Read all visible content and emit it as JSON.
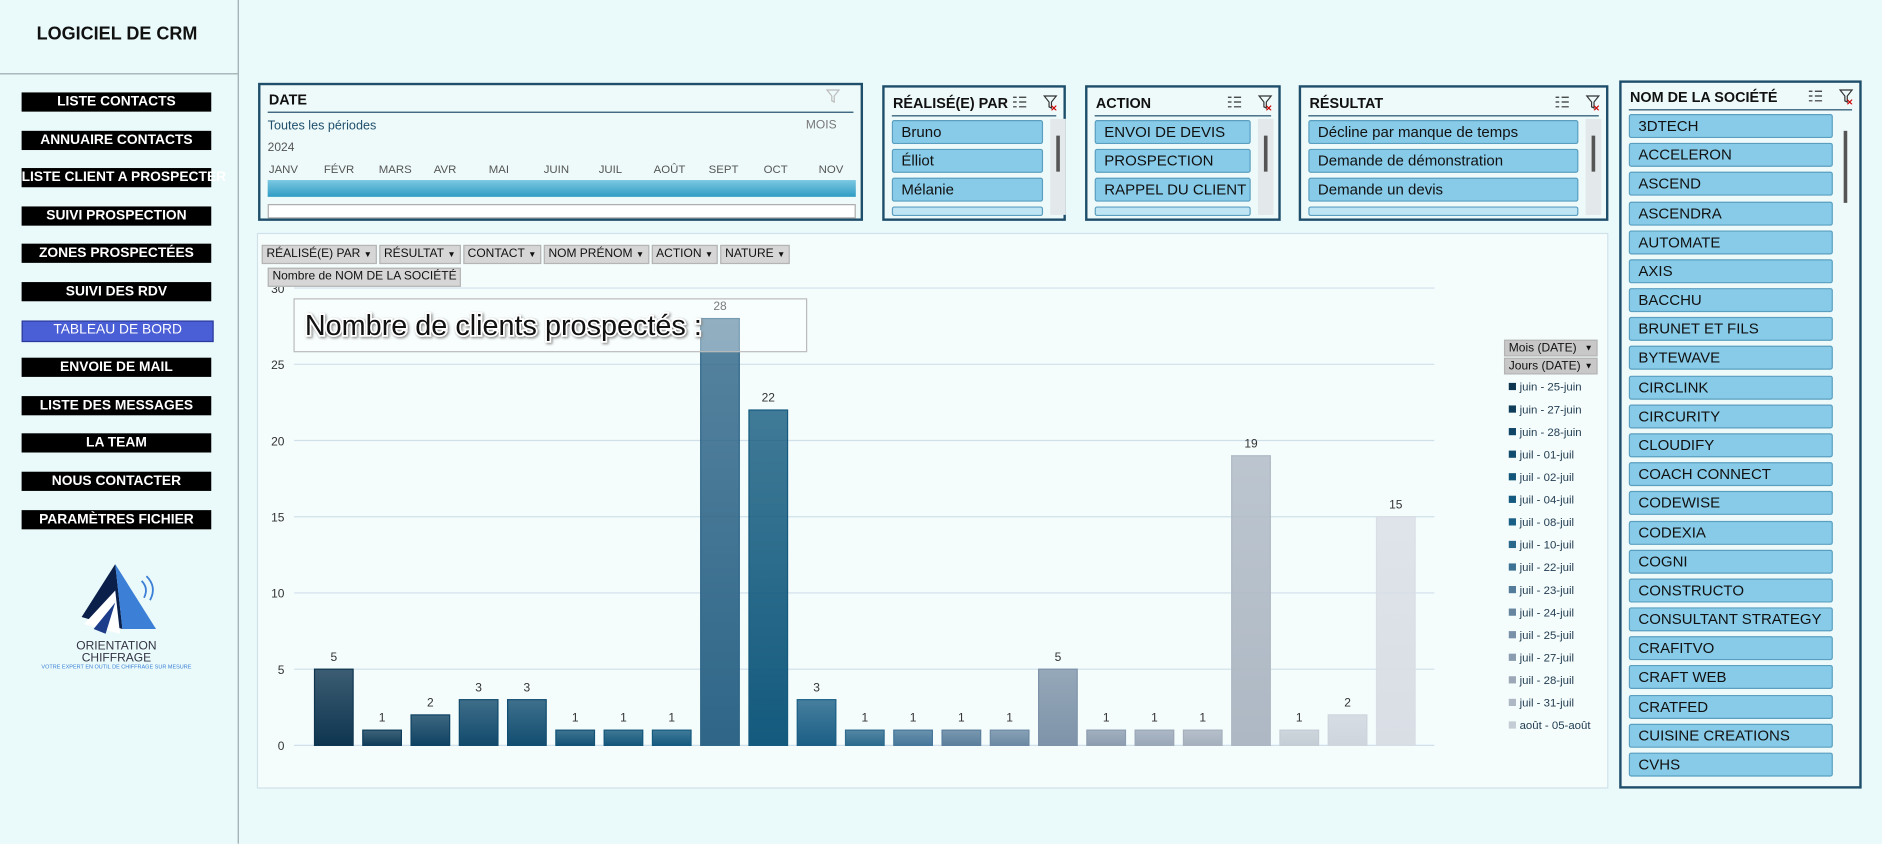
{
  "header": {
    "title": "LOGICIEL DE CRM"
  },
  "menu": [
    "LISTE CONTACTS",
    "ANNUAIRE CONTACTS",
    "LISTE CLIENT A PROSPECTER",
    "SUIVI PROSPECTION",
    "ZONES PROSPECTÉES",
    "SUIVI DES RDV",
    "TABLEAU DE BORD",
    "ENVOIE DE MAIL",
    "LISTE DES MESSAGES",
    "LA TEAM",
    "NOUS CONTACTER",
    "PARAMÈTRES FICHIER"
  ],
  "active_menu": 6,
  "logo": {
    "name": "ORIENTATION",
    "name2": "CHIFFRAGE",
    "tagline": "VOTRE EXPERT EN OUTIL DE CHIFFRAGE SUR MESURE"
  },
  "date_slicer": {
    "title": "DATE",
    "period": "Toutes les périodes",
    "level": "MOIS",
    "year": "2024",
    "months": [
      "JANV",
      "FÉVR",
      "MARS",
      "AVR",
      "MAI",
      "JUIN",
      "JUIL",
      "AOÛT",
      "SEPT",
      "OCT",
      "NOV"
    ]
  },
  "slicers": [
    {
      "title": "RÉALISÉ(E) PAR",
      "items": [
        "Bruno",
        "Élliot",
        "Mélanie"
      ]
    },
    {
      "title": "ACTION",
      "items": [
        "ENVOI DE DEVIS",
        "PROSPECTION",
        "RAPPEL DU CLIENT"
      ]
    },
    {
      "title": "RÉSULTAT",
      "items": [
        "Décline par manque de temps",
        "Demande de démonstration",
        "Demande un devis"
      ]
    }
  ],
  "company_slicer": {
    "title": "NOM DE LA SOCIÉTÉ",
    "items": [
      "3DTECH",
      "ACCELERON",
      "ASCEND",
      "ASCENDRA",
      "AUTOMATE",
      "AXIS",
      "BACCHU",
      "BRUNET ET FILS",
      "BYTEWAVE",
      "CIRCLINK",
      "CIRCURITY",
      "CLOUDIFY",
      "COACH CONNECT",
      "CODEWISE",
      "CODEXIA",
      "COGNI",
      "CONSTRUCTO",
      "CONSULTANT STRATEGY",
      "CRAFITVO",
      "CRAFT WEB",
      "CRATFED",
      "CUISINE CREATIONS",
      "CVHS"
    ]
  },
  "pivot": {
    "filters": [
      "RÉALISÉ(E) PAR",
      "RÉSULTAT",
      "CONTACT",
      "NOM PRÉNOM",
      "ACTION",
      "NATURE"
    ],
    "value_field": "Nombre de NOM DE LA SOCIÉTÉ",
    "row_fields": [
      "Mois (DATE)",
      "Jours (DATE)"
    ],
    "legend": [
      {
        "name": "juin - 25-juin",
        "color": "#0e3550"
      },
      {
        "name": "juin - 27-juin",
        "color": "#103d5a"
      },
      {
        "name": "juin - 28-juin",
        "color": "#114566"
      },
      {
        "name": "juil - 01-juil",
        "color": "#124d70"
      },
      {
        "name": "juil - 02-juil",
        "color": "#135479"
      },
      {
        "name": "juil - 04-juil",
        "color": "#145a80"
      },
      {
        "name": "juil - 08-juil",
        "color": "#1a5f86"
      },
      {
        "name": "juil - 10-juil",
        "color": "#2a688c"
      },
      {
        "name": "juil - 22-juil",
        "color": "#3e7294"
      },
      {
        "name": "juil - 23-juil",
        "color": "#537c9a"
      },
      {
        "name": "juil - 24-juil",
        "color": "#6686a0"
      },
      {
        "name": "juil - 25-juil",
        "color": "#7890a8"
      },
      {
        "name": "juil - 27-juil",
        "color": "#8a9caf"
      },
      {
        "name": "juil - 28-juil",
        "color": "#9ca8b8"
      },
      {
        "name": "juil - 31-juil",
        "color": "#aeb8c4"
      },
      {
        "name": "août - 05-août",
        "color": "#c4ccd5"
      }
    ]
  },
  "chart_data": {
    "type": "bar",
    "title": "Nombre de clients prospectés :",
    "categories": [
      null,
      null,
      null,
      null,
      null,
      null,
      null,
      null,
      null,
      null,
      null,
      null,
      null,
      null,
      null,
      null,
      null,
      null,
      null,
      null,
      null,
      null,
      null
    ],
    "values": [
      5,
      1,
      2,
      3,
      3,
      1,
      1,
      1,
      28,
      22,
      3,
      1,
      1,
      1,
      1,
      5,
      1,
      1,
      1,
      19,
      1,
      2,
      15
    ],
    "colors": [
      "#0e3550",
      "#103d5a",
      "#0f4262",
      "#114a6c",
      "#114d70",
      "#125276",
      "#13577b",
      "#145a80",
      "#2f6688",
      "#135a7e",
      "#1b5f86",
      "#2c6a8e",
      "#46779a",
      "#5b7f9d",
      "#6c8aa4",
      "#7e93a9",
      "#8d9db0",
      "#9aa7b8",
      "#a5b0be",
      "#aeb8c4",
      "#c4ccd5",
      "#cfd5dd",
      "#d9dee5"
    ],
    "ylim": [
      0,
      30
    ],
    "yticks": [
      0,
      5,
      10,
      15,
      20,
      25,
      30
    ],
    "grid": true
  }
}
